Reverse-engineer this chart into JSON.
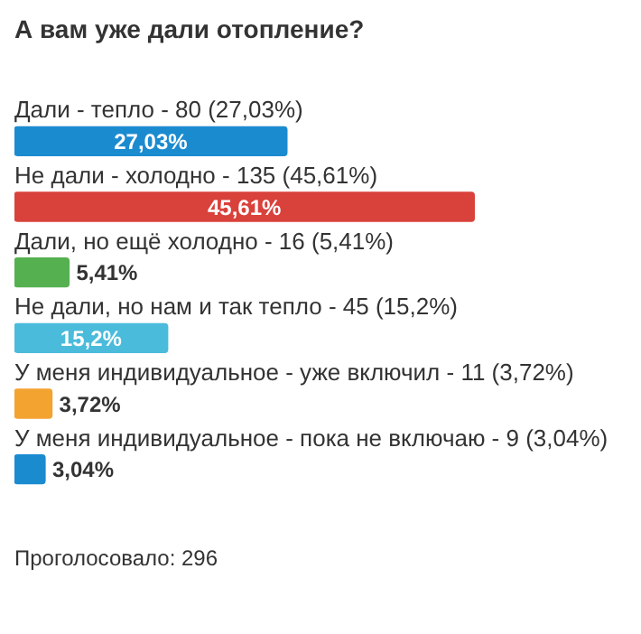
{
  "chart_data": {
    "type": "bar",
    "orientation": "horizontal",
    "title": "А вам уже дали отопление?",
    "categories": [
      "Дали - тепло - 80 (27,03%)",
      "Не дали - холодно - 135 (45,61%)",
      "Дали, но ещё холодно - 16 (5,41%)",
      "Не дали, но нам и так тепло - 45 (15,2%)",
      "У меня индивидуальное - уже включил - 11 (3,72%)",
      "У меня индивидуальное - пока не включаю - 9 (3,04%)"
    ],
    "values": [
      27.03,
      45.61,
      5.41,
      15.2,
      3.72,
      3.04
    ],
    "colors": [
      "#1b8bd0",
      "#d9413b",
      "#55b050",
      "#4bbbdb",
      "#f3a330",
      "#1b8bd0"
    ],
    "value_labels": [
      "27,03%",
      "45,61%",
      "5,41%",
      "15,2%",
      "3,72%",
      "3,04%"
    ],
    "annotations": [
      "Проголосовало: 296"
    ],
    "legend": false
  }
}
